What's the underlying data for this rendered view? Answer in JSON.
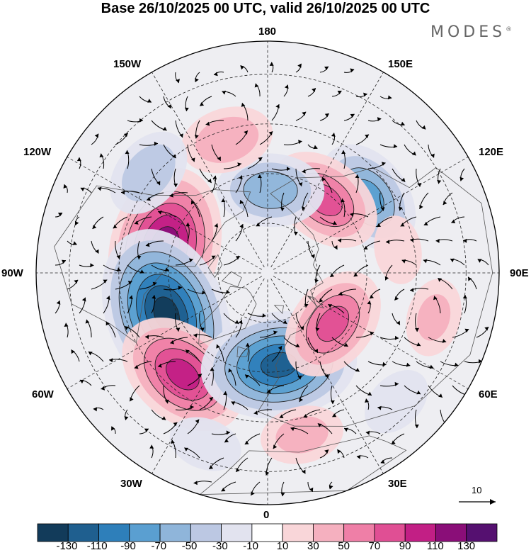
{
  "title": "Base 26/10/2025 00 UTC, valid 26/10/2025 00 UTC",
  "brand": {
    "name": "MODES",
    "mark": "®"
  },
  "longitude_labels": {
    "n180": "180",
    "e150": "150E",
    "e120": "120E",
    "e90": "90E",
    "e60": "60E",
    "e30": "30E",
    "zero": "0",
    "w30": "30W",
    "w60": "60W",
    "w90": "90W",
    "w120": "120W",
    "w150": "150W"
  },
  "vector_reference": {
    "value": "10"
  },
  "colorbar": {
    "ticks": [
      "-130",
      "-110",
      "-90",
      "-70",
      "-50",
      "-30",
      "-10",
      "10",
      "30",
      "50",
      "70",
      "90",
      "110",
      "130"
    ],
    "colors": [
      "#123b5a",
      "#1f5f8f",
      "#2e7fba",
      "#5a9fd1",
      "#8fb5da",
      "#bcc8e3",
      "#e2e3ef",
      "#ffffff",
      "#f9d6d9",
      "#f5b0bf",
      "#ef7fa7",
      "#e04f94",
      "#c21f85",
      "#8a0e78",
      "#551070"
    ]
  },
  "anomalies": [
    {
      "lat": 58,
      "lon": -104,
      "value": 115
    },
    {
      "lat": 57,
      "lon": -68,
      "value": -130
    },
    {
      "lat": 50,
      "lon": -40,
      "value": 90
    },
    {
      "lat": 62,
      "lon": 7,
      "value": -110
    },
    {
      "lat": 65,
      "lon": 52,
      "value": 70
    },
    {
      "lat": 52,
      "lon": 127,
      "value": -70
    },
    {
      "lat": 62,
      "lon": 142,
      "value": 70
    },
    {
      "lat": 65,
      "lon": 178,
      "value": -60
    },
    {
      "lat": 48,
      "lon": -163,
      "value": 45
    },
    {
      "lat": 43,
      "lon": -130,
      "value": -45
    },
    {
      "lat": 40,
      "lon": 12,
      "value": 35
    },
    {
      "lat": 38,
      "lon": 75,
      "value": 30
    },
    {
      "lat": 50,
      "lon": 100,
      "value": 20
    },
    {
      "lat": 35,
      "lon": 45,
      "value": -25
    },
    {
      "lat": 35,
      "lon": -20,
      "value": -25
    }
  ]
}
